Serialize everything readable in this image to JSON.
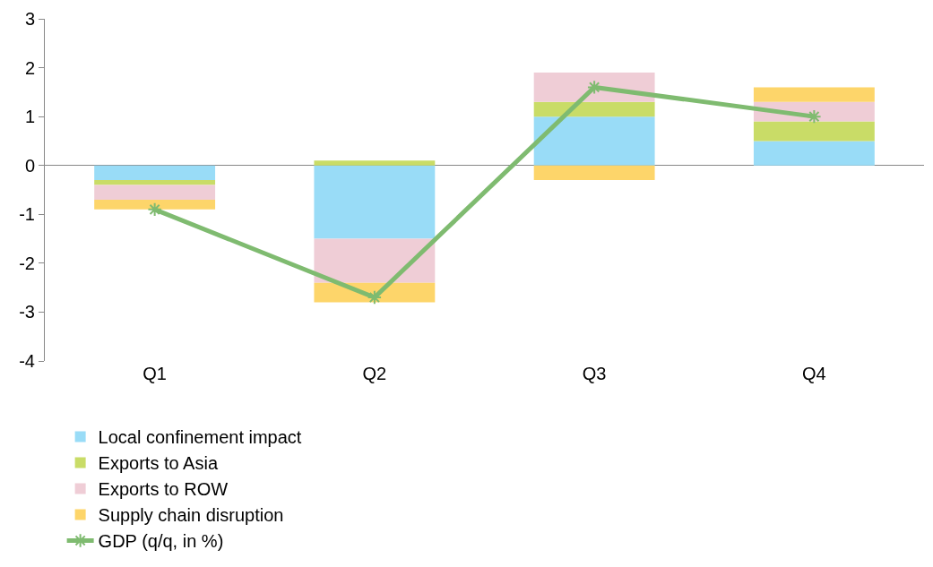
{
  "chart_data": {
    "type": "bar",
    "stacked": true,
    "categories": [
      "Q1",
      "Q2",
      "Q3",
      "Q4"
    ],
    "series": [
      {
        "name": "Local confinement impact",
        "color": "#99dcf7",
        "values": [
          -0.3,
          -1.5,
          1.0,
          0.5
        ]
      },
      {
        "name": "Exports to Asia",
        "color": "#c9dc67",
        "values": [
          -0.1,
          0.1,
          0.3,
          0.4
        ]
      },
      {
        "name": "Exports to ROW",
        "color": "#efcdd6",
        "values": [
          -0.3,
          -0.9,
          0.6,
          0.4
        ]
      },
      {
        "name": "Supply chain disruption",
        "color": "#fdd56a",
        "values": [
          -0.2,
          -0.4,
          -0.3,
          0.3
        ]
      },
      {
        "name": "GDP (q/q, in %)",
        "color": "#7fbb70",
        "type": "line",
        "marker": "cross",
        "values": [
          -0.9,
          -2.7,
          1.6,
          1.0
        ]
      }
    ],
    "ylim": [
      -4,
      3
    ],
    "yticks": [
      -4,
      -3,
      -2,
      -1,
      0,
      1,
      2,
      3
    ],
    "legend": "bottom"
  }
}
